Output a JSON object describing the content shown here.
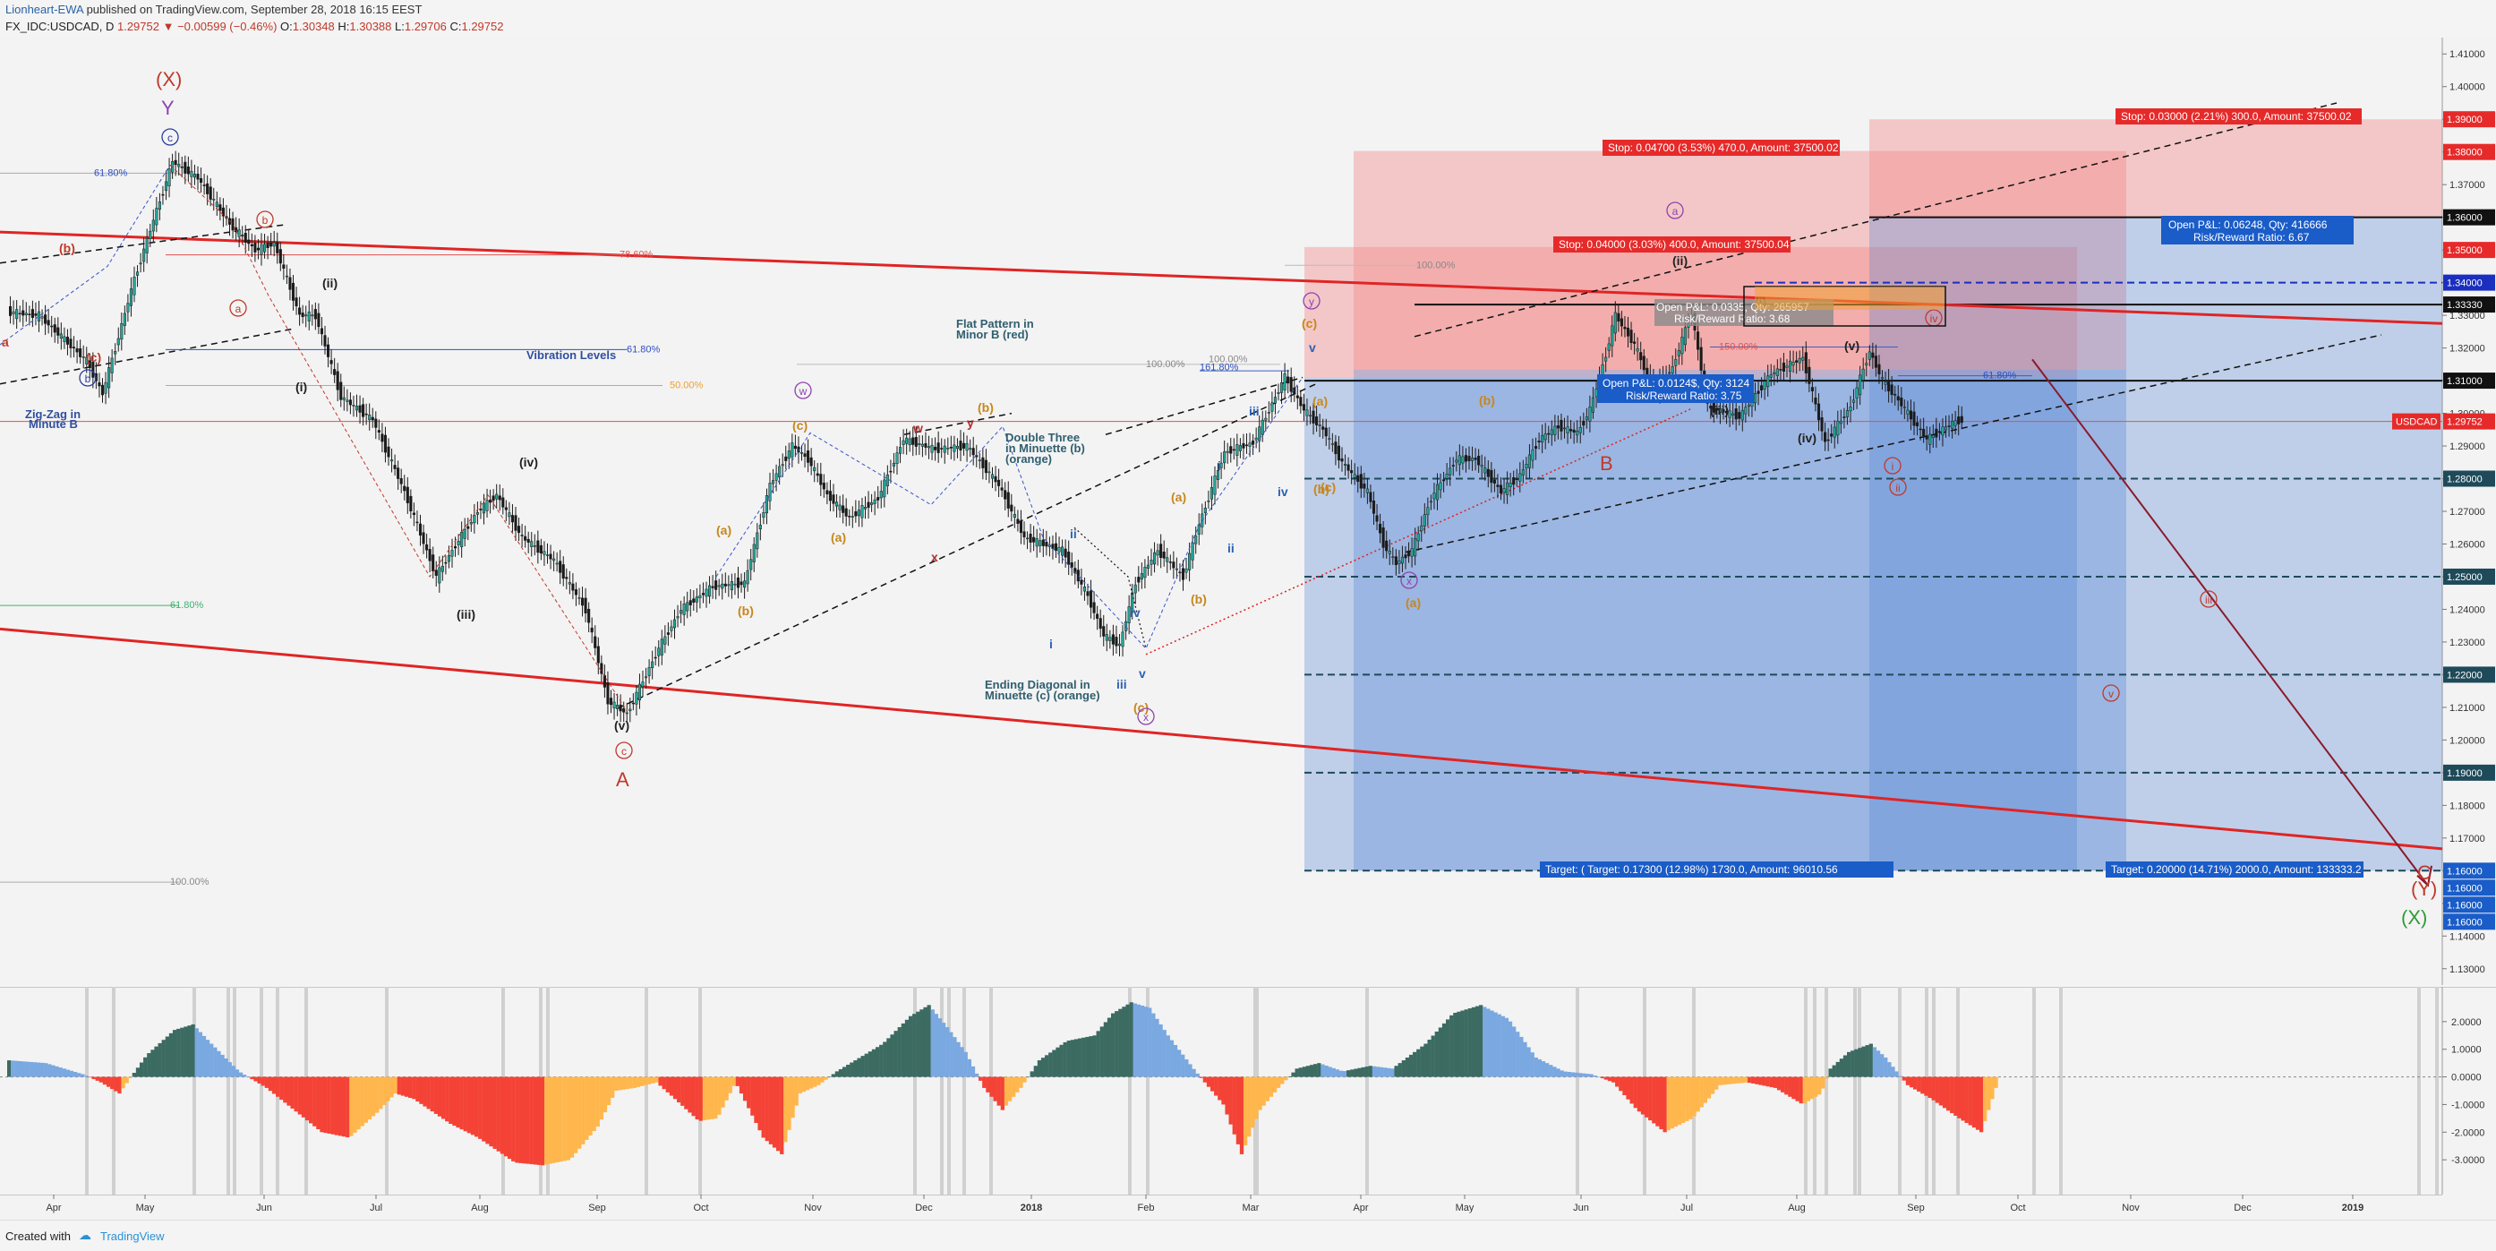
{
  "header": {
    "author": "Lionheart-EWA",
    "published": "published on TradingView.com, September 28, 2018 16:15 EEST",
    "symbol": "FX_IDC:USDCAD, D",
    "last": "1.29752",
    "change": "▼ −0.00599 (−0.46%)",
    "o_label": "O:",
    "o": "1.30348",
    "h_label": "H:",
    "h": "1.30388",
    "l_label": "L:",
    "l": "1.29706",
    "c_label": "C:",
    "c": "1.29752"
  },
  "footer": {
    "created": "Created with",
    "brand": "TradingView"
  },
  "colors": {
    "up": "#26a69a",
    "down": "#1b1b1b",
    "channel": "#e02424",
    "target": "#4a7fd4",
    "stop": "#f28b8b",
    "osc_blue": "#7aa8e0",
    "osc_teal": "#3c6b61",
    "osc_red": "#f44336",
    "osc_orange": "#ffb74d"
  },
  "chart_data": {
    "type": "candlestick",
    "symbol": "USDCAD",
    "timeframe": "D",
    "ylim": [
      1.125,
      1.415
    ],
    "y_ticks": [
      "1.41000",
      "1.40000",
      "1.39000",
      "1.38000",
      "1.37000",
      "1.36000",
      "1.35000",
      "1.34000",
      "1.33000",
      "1.32000",
      "1.31000",
      "1.30000",
      "1.29000",
      "1.28000",
      "1.27000",
      "1.26000",
      "1.25000",
      "1.24000",
      "1.23000",
      "1.22000",
      "1.21000",
      "1.20000",
      "1.19000",
      "1.18000",
      "1.17000",
      "1.16000",
      "1.15000",
      "1.14000",
      "1.13000"
    ],
    "x_ticks": [
      "Apr",
      "May",
      "Jun",
      "Jul",
      "Aug",
      "Sep",
      "Oct",
      "Nov",
      "Dec",
      "2018",
      "Feb",
      "Mar",
      "Apr",
      "May",
      "Jun",
      "Jul",
      "Aug",
      "Sep",
      "Oct",
      "Nov",
      "Dec",
      "2019"
    ],
    "price_path": [
      [
        0,
        1.331
      ],
      [
        10,
        1.33
      ],
      [
        25,
        1.316
      ],
      [
        30,
        1.306
      ],
      [
        40,
        1.341
      ],
      [
        52,
        1.377
      ],
      [
        60,
        1.372
      ],
      [
        70,
        1.358
      ],
      [
        78,
        1.35
      ],
      [
        84,
        1.352
      ],
      [
        92,
        1.33
      ],
      [
        97,
        1.33
      ],
      [
        105,
        1.305
      ],
      [
        115,
        1.298
      ],
      [
        125,
        1.276
      ],
      [
        135,
        1.25
      ],
      [
        140,
        1.258
      ],
      [
        148,
        1.27
      ],
      [
        154,
        1.275
      ],
      [
        162,
        1.262
      ],
      [
        172,
        1.255
      ],
      [
        182,
        1.24
      ],
      [
        189,
        1.212
      ],
      [
        195,
        1.208
      ],
      [
        205,
        1.228
      ],
      [
        212,
        1.24
      ],
      [
        222,
        1.247
      ],
      [
        232,
        1.248
      ],
      [
        240,
        1.278
      ],
      [
        247,
        1.29
      ],
      [
        252,
        1.286
      ],
      [
        258,
        1.275
      ],
      [
        265,
        1.268
      ],
      [
        274,
        1.274
      ],
      [
        282,
        1.292
      ],
      [
        292,
        1.289
      ],
      [
        302,
        1.29
      ],
      [
        312,
        1.278
      ],
      [
        320,
        1.262
      ],
      [
        332,
        1.258
      ],
      [
        340,
        1.244
      ],
      [
        345,
        1.232
      ],
      [
        350,
        1.229
      ],
      [
        355,
        1.248
      ],
      [
        362,
        1.258
      ],
      [
        370,
        1.25
      ],
      [
        375,
        1.266
      ],
      [
        383,
        1.288
      ],
      [
        392,
        1.291
      ],
      [
        398,
        1.303
      ],
      [
        402,
        1.311
      ],
      [
        408,
        1.301
      ],
      [
        414,
        1.295
      ],
      [
        420,
        1.285
      ],
      [
        428,
        1.276
      ],
      [
        433,
        1.26
      ],
      [
        437,
        1.254
      ],
      [
        442,
        1.258
      ],
      [
        448,
        1.274
      ],
      [
        456,
        1.286
      ],
      [
        462,
        1.286
      ],
      [
        470,
        1.276
      ],
      [
        476,
        1.281
      ],
      [
        482,
        1.292
      ],
      [
        488,
        1.296
      ],
      [
        494,
        1.294
      ],
      [
        498,
        1.301
      ],
      [
        503,
        1.318
      ],
      [
        506,
        1.33
      ],
      [
        512,
        1.321
      ],
      [
        518,
        1.307
      ],
      [
        524,
        1.314
      ],
      [
        530,
        1.331
      ],
      [
        535,
        1.302
      ],
      [
        545,
        1.299
      ],
      [
        555,
        1.312
      ],
      [
        565,
        1.317
      ],
      [
        572,
        1.291
      ],
      [
        580,
        1.302
      ],
      [
        586,
        1.319
      ],
      [
        590,
        1.31
      ],
      [
        595,
        1.304
      ],
      [
        604,
        1.292
      ],
      [
        612,
        1.297
      ],
      [
        615,
        1.298
      ]
    ],
    "axis_labels_right": [
      {
        "value": 1.39,
        "label": "1.39000"
      },
      {
        "value": 1.38,
        "label": "1.38000"
      },
      {
        "value": 1.36,
        "label": "1.36000"
      },
      {
        "value": 1.35,
        "label": "1.35000"
      },
      {
        "value": 1.34,
        "label": "1.34000"
      },
      {
        "value": 1.3333,
        "label": "1.33330"
      },
      {
        "value": 1.31,
        "label": "1.31000"
      },
      {
        "value": 1.29752,
        "label": "1.29752"
      },
      {
        "value": 1.28,
        "label": "1.28000"
      },
      {
        "value": 1.25,
        "label": "1.25000"
      },
      {
        "value": 1.22,
        "label": "1.22000"
      },
      {
        "value": 1.19,
        "label": "1.19000"
      },
      {
        "value": 1.16,
        "label": "1.16000"
      },
      {
        "value": 1.16,
        "label": "1.16000"
      },
      {
        "value": 1.16,
        "label": "1.16000"
      },
      {
        "value": 1.16,
        "label": "1.16000"
      }
    ],
    "symbol_tag": "USDCAD",
    "positions": [
      {
        "stop_text": "Stop: 0.04700 (3.53%) 470.0, Amount: 37500.02"
      },
      {
        "stop_text": "Stop: 0.04000 (3.03%) 400.0, Amount: 37500.04"
      },
      {
        "stop_text": "Stop: 0.03000 (2.21%) 300.0, Amount: 37500.02"
      },
      {
        "target_text": "Target: ( Target: 0.17300 (12.98%) 1730.0, Amount: 96010.56"
      },
      {
        "target_text": "Target: 0.20000 (14.71%) 2000.0, Amount: 133333.2"
      },
      {
        "pnl_text": "Open P&L: 0.06248, Qty: 416666",
        "rr_text": "Risk/Reward Ratio: 6.67"
      },
      {
        "pnl_text": "Open P&L: 0.0124$, Qty: 3124",
        "rr_text": "Risk/Reward Ratio: 3.75"
      },
      {
        "pnl_text": "Open P&L: 0.0335, Qty: 265957",
        "rr_text": "Risk/Reward Ratio: 3.68"
      }
    ],
    "fib_levels": [
      {
        "label": "78.60%"
      },
      {
        "label": "61.80%"
      },
      {
        "label": "50.00%"
      },
      {
        "label": "61.80%"
      },
      {
        "label": "100.00%"
      },
      {
        "label": "100.00%"
      },
      {
        "label": "100.00%"
      },
      {
        "label": "100.00%"
      },
      {
        "label": "161.80%"
      },
      {
        "label": "150.00%"
      },
      {
        "label": "61.80%"
      },
      {
        "label": "61.80%"
      }
    ],
    "annotations": [
      {
        "text": "Vibration Levels",
        "color": "#2f4f9f"
      },
      {
        "text": "Zig-Zag in",
        "color": "#2f4f9f"
      },
      {
        "text": "Minute B",
        "color": "#2f4f9f"
      },
      {
        "text": "Flat Pattern in",
        "color": "#2f5f6f"
      },
      {
        "text": "Minor B (red)",
        "color": "#2f5f6f"
      },
      {
        "text": "Double Three",
        "color": "#2f5f6f"
      },
      {
        "text": "in Minuette (b)",
        "color": "#2f5f6f"
      },
      {
        "text": "(orange)",
        "color": "#2f5f6f"
      },
      {
        "text": "Ending Diagonal in",
        "color": "#2f5f6f"
      },
      {
        "text": "Minuette (c) (orange)",
        "color": "#2f5f6f"
      }
    ],
    "wave_labels": [
      {
        "text": "(X)",
        "color": "#c0392b"
      },
      {
        "text": "Y",
        "color": "#8e44ad"
      },
      {
        "text": "c",
        "color": "#2c3e9f",
        "circle": true
      },
      {
        "text": "(b)",
        "color": "#c0392b"
      },
      {
        "text": "b",
        "color": "#c0392b",
        "circle": true
      },
      {
        "text": "a",
        "color": "#c0392b",
        "circle": true
      },
      {
        "text": "(c)",
        "color": "#c0392b"
      },
      {
        "text": "b",
        "color": "#2c3e9f",
        "circle": true
      },
      {
        "text": "a",
        "color": "#c0392b"
      },
      {
        "text": "(ii)",
        "color": "#222"
      },
      {
        "text": "(i)",
        "color": "#222"
      },
      {
        "text": "(iv)",
        "color": "#222"
      },
      {
        "text": "(iii)",
        "color": "#222"
      },
      {
        "text": "(v)",
        "color": "#222"
      },
      {
        "text": "c",
        "color": "#c0392b",
        "circle": true
      },
      {
        "text": "A",
        "color": "#c0392b"
      },
      {
        "text": "(a)",
        "color": "#c8861b"
      },
      {
        "text": "(b)",
        "color": "#c8861b"
      },
      {
        "text": "(c)",
        "color": "#c8861b"
      },
      {
        "text": "w",
        "color": "#8e44ad",
        "circle": true
      },
      {
        "text": "(a)",
        "color": "#c8861b"
      },
      {
        "text": "w",
        "color": "#b03030"
      },
      {
        "text": "y",
        "color": "#b03030"
      },
      {
        "text": "(b)",
        "color": "#c8861b"
      },
      {
        "text": "x",
        "color": "#b03030"
      },
      {
        "text": "ii",
        "color": "#2c62b5"
      },
      {
        "text": "i",
        "color": "#2c62b5"
      },
      {
        "text": "iv",
        "color": "#2c62b5"
      },
      {
        "text": "iii",
        "color": "#2c62b5"
      },
      {
        "text": "v",
        "color": "#2c62b5"
      },
      {
        "text": "(c)",
        "color": "#c8861b"
      },
      {
        "text": "x",
        "color": "#8e44ad",
        "circle": true
      },
      {
        "text": "(a)",
        "color": "#c8861b"
      },
      {
        "text": "(b)",
        "color": "#c8861b"
      },
      {
        "text": "i",
        "color": "#2c62b5"
      },
      {
        "text": "ii",
        "color": "#2c62b5"
      },
      {
        "text": "iii",
        "color": "#2c62b5"
      },
      {
        "text": "iv",
        "color": "#2c62b5"
      },
      {
        "text": "v",
        "color": "#2c62b5"
      },
      {
        "text": "y",
        "color": "#8e44ad",
        "circle": true
      },
      {
        "text": "(c)",
        "color": "#c8861b"
      },
      {
        "text": "(a)",
        "color": "#c8861b"
      },
      {
        "text": "(b)",
        "color": "#c8861b"
      },
      {
        "text": "(c)",
        "color": "#c8861b"
      },
      {
        "text": "x",
        "color": "#8e44ad",
        "circle": true
      },
      {
        "text": "(a)",
        "color": "#c8861b"
      },
      {
        "text": "(b)",
        "color": "#c8861b"
      },
      {
        "text": "B",
        "color": "#c0392b"
      },
      {
        "text": "a",
        "color": "#8e44ad",
        "circle": true
      },
      {
        "text": "(c)",
        "color": "#c8861b"
      },
      {
        "text": "(ii)",
        "color": "#222"
      },
      {
        "text": "(i)",
        "color": "#222"
      },
      {
        "text": "(iii)",
        "color": "#222"
      },
      {
        "text": "(iv)",
        "color": "#222"
      },
      {
        "text": "(v)",
        "color": "#222"
      },
      {
        "text": "i",
        "color": "#c0392b",
        "circle": true
      },
      {
        "text": "ii",
        "color": "#c0392b",
        "circle": true
      },
      {
        "text": "iv",
        "color": "#c0392b",
        "circle": true
      },
      {
        "text": "iii",
        "color": "#c0392b",
        "circle": true
      },
      {
        "text": "v",
        "color": "#c0392b",
        "circle": true
      },
      {
        "text": "C",
        "color": "#c0392b"
      },
      {
        "text": "(Y)",
        "color": "#c0392b"
      },
      {
        "text": "(X)",
        "color": "#2e9c34"
      }
    ],
    "oscillator": {
      "ylim": [
        -4,
        3
      ],
      "y_ticks": [
        "2.0000",
        "1.0000",
        "0.0000",
        "-1.0000",
        "-2.0000",
        "-3.0000"
      ],
      "path": [
        [
          0,
          0.6
        ],
        [
          20,
          0.5
        ],
        [
          40,
          0.1
        ],
        [
          50,
          -0.2
        ],
        [
          60,
          -0.6
        ],
        [
          75,
          0.8
        ],
        [
          90,
          1.7
        ],
        [
          100,
          1.9
        ],
        [
          110,
          1.2
        ],
        [
          125,
          0.2
        ],
        [
          140,
          -0.4
        ],
        [
          155,
          -1.2
        ],
        [
          170,
          -2.0
        ],
        [
          185,
          -2.2
        ],
        [
          200,
          -1.3
        ],
        [
          210,
          -0.6
        ],
        [
          220,
          -0.8
        ],
        [
          240,
          -1.7
        ],
        [
          255,
          -2.2
        ],
        [
          275,
          -3.1
        ],
        [
          290,
          -3.2
        ],
        [
          305,
          -3.0
        ],
        [
          320,
          -1.8
        ],
        [
          330,
          -0.5
        ],
        [
          340,
          -0.4
        ],
        [
          352,
          -0.2
        ],
        [
          362,
          -0.8
        ],
        [
          375,
          -1.6
        ],
        [
          385,
          -1.5
        ],
        [
          395,
          -0.2
        ],
        [
          410,
          -2.2
        ],
        [
          420,
          -2.8
        ],
        [
          430,
          -0.6
        ],
        [
          440,
          -0.3
        ],
        [
          450,
          0.2
        ],
        [
          460,
          0.6
        ],
        [
          475,
          1.2
        ],
        [
          490,
          2.2
        ],
        [
          500,
          2.6
        ],
        [
          510,
          1.8
        ],
        [
          520,
          0.9
        ],
        [
          530,
          -0.4
        ],
        [
          540,
          -1.2
        ],
        [
          550,
          -0.4
        ],
        [
          560,
          0.6
        ],
        [
          575,
          1.3
        ],
        [
          590,
          1.5
        ],
        [
          600,
          2.3
        ],
        [
          610,
          2.7
        ],
        [
          620,
          2.5
        ],
        [
          630,
          1.5
        ],
        [
          645,
          0.2
        ],
        [
          660,
          -1.0
        ],
        [
          670,
          -2.8
        ],
        [
          680,
          -1.2
        ],
        [
          690,
          -0.4
        ],
        [
          700,
          0.3
        ],
        [
          712,
          0.5
        ],
        [
          725,
          0.2
        ],
        [
          740,
          0.4
        ],
        [
          752,
          0.3
        ],
        [
          770,
          1.2
        ],
        [
          785,
          2.3
        ],
        [
          800,
          2.6
        ],
        [
          815,
          2.1
        ],
        [
          830,
          0.7
        ],
        [
          845,
          0.2
        ],
        [
          860,
          0.1
        ],
        [
          872,
          -0.2
        ],
        [
          885,
          -1.2
        ],
        [
          900,
          -2.0
        ],
        [
          915,
          -1.5
        ],
        [
          930,
          -0.3
        ],
        [
          945,
          -0.2
        ],
        [
          960,
          -0.4
        ],
        [
          975,
          -1.0
        ],
        [
          985,
          -0.6
        ],
        [
          990,
          0.3
        ],
        [
          1000,
          0.9
        ],
        [
          1012,
          1.2
        ],
        [
          1020,
          0.7
        ],
        [
          1032,
          -0.3
        ],
        [
          1045,
          -0.8
        ],
        [
          1060,
          -1.5
        ],
        [
          1072,
          -2.0
        ],
        [
          1080,
          -0.4
        ]
      ]
    }
  }
}
